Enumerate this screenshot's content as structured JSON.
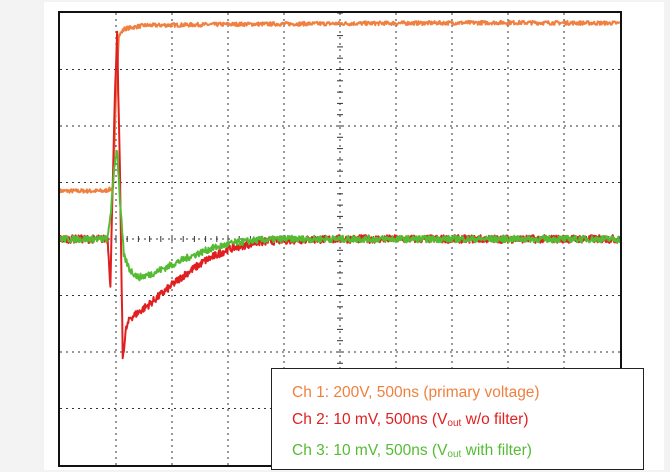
{
  "chart_data": {
    "type": "line",
    "title": "",
    "xlabel": "",
    "ylabel": "",
    "grid": true,
    "divisions": {
      "x": 10,
      "y": 8
    },
    "x_unit": "div",
    "xlim": [
      0,
      10
    ],
    "ylim": [
      -4,
      4
    ],
    "legend_position": "bottom-right",
    "legend": [
      {
        "channel": "Ch 1",
        "scale": "200V, 500ns",
        "desc_pre": "(primary voltage)",
        "desc_sub": "",
        "desc_post": ""
      },
      {
        "channel": "Ch 2",
        "scale": "10 mV, 500ns",
        "desc_pre": "(V",
        "desc_sub": "out",
        "desc_post": " w/o filter)"
      },
      {
        "channel": "Ch 3",
        "scale": "10 mV, 500ns",
        "desc_pre": "(V",
        "desc_sub": "out",
        "desc_post": " with filter)"
      }
    ],
    "series": [
      {
        "channel": "Ch 1",
        "color": "#f08040",
        "points": [
          [
            0,
            0.85
          ],
          [
            0.8,
            0.85
          ],
          [
            0.95,
            0.9
          ],
          [
            1.0,
            2.5
          ],
          [
            1.05,
            3.6
          ],
          [
            1.15,
            3.72
          ],
          [
            1.5,
            3.78
          ],
          [
            3,
            3.8
          ],
          [
            6,
            3.82
          ],
          [
            8,
            3.83
          ],
          [
            10,
            3.82
          ]
        ]
      },
      {
        "channel": "Ch 2",
        "color": "#e02020",
        "points": [
          [
            0,
            0
          ],
          [
            0.85,
            0
          ],
          [
            0.9,
            -0.8
          ],
          [
            0.97,
            2.2
          ],
          [
            1.02,
            3.6
          ],
          [
            1.07,
            1.2
          ],
          [
            1.12,
            -2.1
          ],
          [
            1.18,
            -1.6
          ],
          [
            1.25,
            -1.4
          ],
          [
            1.4,
            -1.3
          ],
          [
            1.6,
            -1.15
          ],
          [
            1.9,
            -0.9
          ],
          [
            2.2,
            -0.65
          ],
          [
            2.6,
            -0.38
          ],
          [
            3.0,
            -0.18
          ],
          [
            3.5,
            -0.06
          ],
          [
            4.0,
            -0.02
          ],
          [
            5,
            0
          ],
          [
            6,
            0
          ],
          [
            8,
            0
          ],
          [
            9.5,
            0
          ],
          [
            10,
            0
          ]
        ]
      },
      {
        "channel": "Ch 3",
        "color": "#55bb33",
        "points": [
          [
            0,
            0
          ],
          [
            0.85,
            0
          ],
          [
            0.92,
            0.6
          ],
          [
            0.97,
            1.3
          ],
          [
            1.02,
            1.6
          ],
          [
            1.07,
            0.7
          ],
          [
            1.14,
            -0.3
          ],
          [
            1.25,
            -0.55
          ],
          [
            1.4,
            -0.68
          ],
          [
            1.6,
            -0.63
          ],
          [
            1.9,
            -0.5
          ],
          [
            2.3,
            -0.32
          ],
          [
            2.7,
            -0.17
          ],
          [
            3.1,
            -0.07
          ],
          [
            3.5,
            -0.02
          ],
          [
            4.0,
            0
          ],
          [
            5,
            0
          ],
          [
            6,
            0
          ],
          [
            8,
            0
          ],
          [
            10,
            0
          ]
        ]
      }
    ]
  }
}
